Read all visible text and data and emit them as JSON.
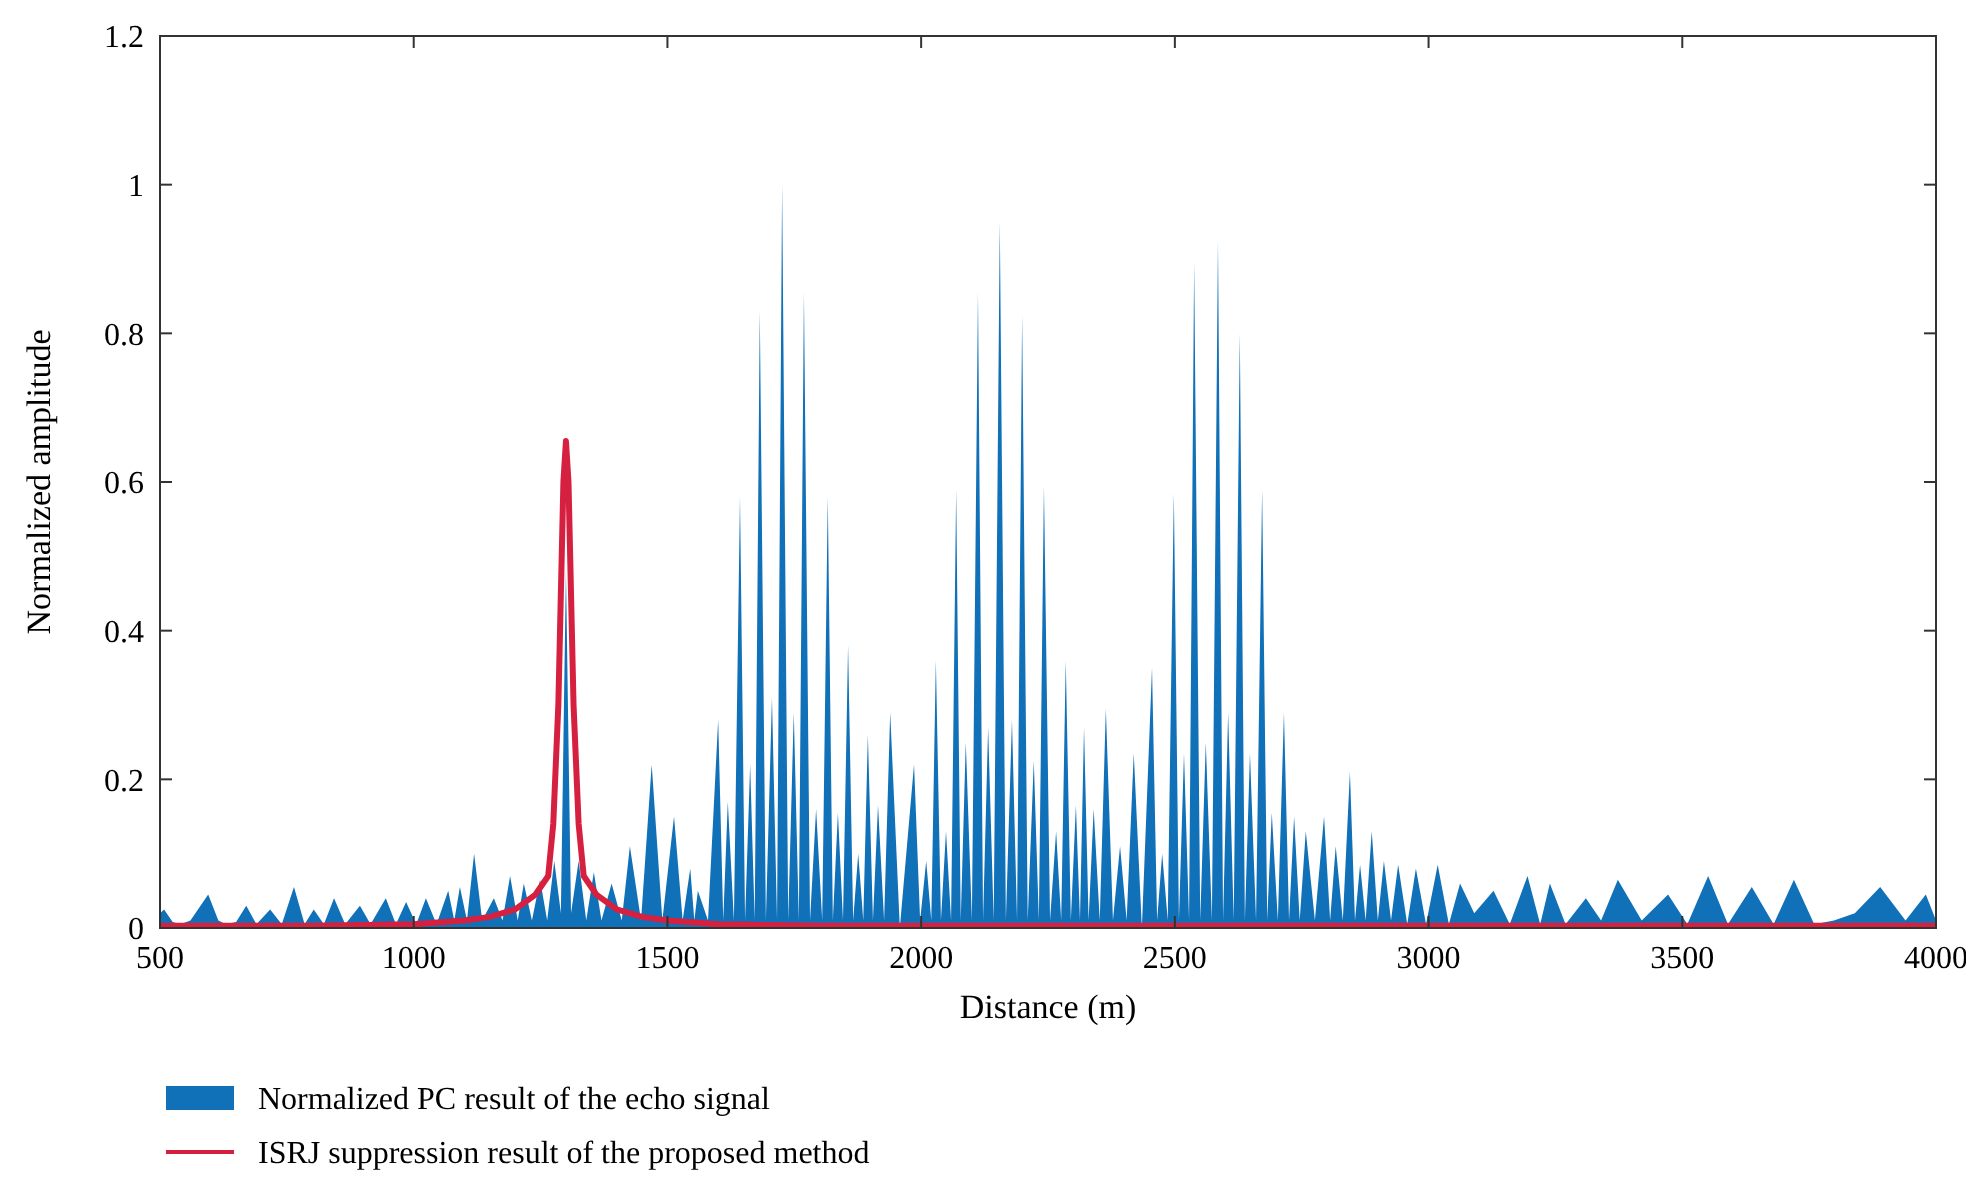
{
  "chart_data": {
    "type": "area",
    "xlabel": "Distance (m)",
    "ylabel": "Normalized amplitude",
    "xlim": [
      500,
      4000
    ],
    "ylim": [
      0,
      1.2
    ],
    "xticks": [
      500,
      1000,
      1500,
      2000,
      2500,
      3000,
      3500,
      4000
    ],
    "yticks": [
      0,
      0.2,
      0.4,
      0.6,
      0.8,
      1,
      1.2
    ],
    "grid": false,
    "legend": "bottom",
    "series": [
      {
        "name": "Normalized PC result of the echo signal",
        "color": "#1070b8",
        "x": [
          500,
          508,
          525,
          540,
          560,
          595,
          615,
          630,
          650,
          670,
          690,
          717,
          740,
          764,
          785,
          803,
          823,
          843,
          865,
          894,
          915,
          945,
          965,
          985,
          1005,
          1024,
          1045,
          1068,
          1080,
          1091,
          1105,
          1119,
          1135,
          1158,
          1175,
          1190,
          1205,
          1217,
          1233,
          1249,
          1263,
          1277,
          1290,
          1300,
          1310,
          1325,
          1340,
          1355,
          1370,
          1390,
          1410,
          1426,
          1448,
          1469,
          1490,
          1513,
          1530,
          1545,
          1553,
          1560,
          1580,
          1600,
          1610,
          1619,
          1631,
          1643,
          1653,
          1663,
          1672,
          1682,
          1694,
          1706,
          1716,
          1726,
          1738,
          1749,
          1759,
          1769,
          1781,
          1793,
          1805,
          1816,
          1826,
          1836,
          1846,
          1856,
          1866,
          1876,
          1886,
          1895,
          1905,
          1915,
          1927,
          1939,
          1958,
          1986,
          1998,
          2010,
          2020,
          2029,
          2039,
          2049,
          2059,
          2069,
          2078,
          2088,
          2100,
          2112,
          2122,
          2132,
          2143,
          2155,
          2167,
          2179,
          2189,
          2199,
          2210,
          2222,
          2232,
          2242,
          2254,
          2266,
          2276,
          2285,
          2295,
          2305,
          2313,
          2321,
          2330,
          2340,
          2352,
          2364,
          2378,
          2392,
          2405,
          2419,
          2435,
          2455,
          2465,
          2475,
          2486,
          2498,
          2508,
          2518,
          2528,
          2538,
          2550,
          2561,
          2573,
          2585,
          2595,
          2605,
          2616,
          2628,
          2638,
          2648,
          2660,
          2672,
          2682,
          2691,
          2703,
          2715,
          2725,
          2735,
          2746,
          2758,
          2776,
          2794,
          2806,
          2817,
          2831,
          2845,
          2855,
          2865,
          2876,
          2888,
          2900,
          2912,
          2926,
          2940,
          2958,
          2975,
          2995,
          3018,
          3040,
          3062,
          3090,
          3128,
          3160,
          3195,
          3220,
          3239,
          3270,
          3310,
          3340,
          3373,
          3420,
          3472,
          3510,
          3551,
          3590,
          3637,
          3680,
          3720,
          3760,
          3799,
          3840,
          3890,
          3940,
          3980,
          4000
        ],
        "values": [
          0.02,
          0.025,
          0.008,
          0.005,
          0.01,
          0.045,
          0.01,
          0.005,
          0.008,
          0.03,
          0.005,
          0.025,
          0.005,
          0.055,
          0.005,
          0.025,
          0.005,
          0.04,
          0.005,
          0.03,
          0.005,
          0.04,
          0.005,
          0.035,
          0.005,
          0.04,
          0.005,
          0.05,
          0.01,
          0.055,
          0.01,
          0.1,
          0.01,
          0.04,
          0.01,
          0.07,
          0.01,
          0.06,
          0.01,
          0.065,
          0.01,
          0.09,
          0.02,
          0.48,
          0.02,
          0.09,
          0.01,
          0.075,
          0.01,
          0.06,
          0.01,
          0.11,
          0.01,
          0.22,
          0.01,
          0.15,
          0.01,
          0.08,
          0.01,
          0.05,
          0.01,
          0.28,
          0.01,
          0.17,
          0.01,
          0.58,
          0.01,
          0.22,
          0.01,
          0.83,
          0.01,
          0.31,
          0.01,
          1.0,
          0.01,
          0.29,
          0.01,
          0.855,
          0.01,
          0.16,
          0.01,
          0.58,
          0.01,
          0.155,
          0.01,
          0.38,
          0.01,
          0.1,
          0.01,
          0.26,
          0.01,
          0.165,
          0.01,
          0.29,
          0,
          0.22,
          0.01,
          0.09,
          0.01,
          0.36,
          0.01,
          0.13,
          0.01,
          0.59,
          0.01,
          0.25,
          0.01,
          0.855,
          0.01,
          0.27,
          0.01,
          0.95,
          0.01,
          0.28,
          0.01,
          0.825,
          0.01,
          0.225,
          0.01,
          0.595,
          0.01,
          0.13,
          0.01,
          0.36,
          0.01,
          0.165,
          0.01,
          0.27,
          0.01,
          0.16,
          0.01,
          0.295,
          0.01,
          0.11,
          0.01,
          0.235,
          0,
          0.35,
          0.01,
          0.1,
          0.01,
          0.585,
          0.01,
          0.235,
          0.01,
          0.895,
          0.01,
          0.25,
          0.01,
          0.925,
          0.01,
          0.29,
          0.01,
          0.8,
          0.01,
          0.235,
          0.01,
          0.59,
          0.01,
          0.155,
          0.01,
          0.29,
          0.01,
          0.15,
          0.01,
          0.13,
          0.01,
          0.15,
          0.01,
          0.11,
          0.01,
          0.21,
          0.01,
          0.085,
          0.01,
          0.13,
          0.01,
          0.09,
          0.01,
          0.085,
          0.005,
          0.08,
          0.005,
          0.085,
          0.005,
          0.06,
          0.02,
          0.05,
          0.005,
          0.07,
          0.005,
          0.06,
          0.005,
          0.04,
          0.01,
          0.065,
          0.01,
          0.045,
          0.005,
          0.07,
          0.005,
          0.055,
          0.005,
          0.065,
          0.005,
          0.01,
          0.02,
          0.055,
          0.01,
          0.045,
          0.01
        ]
      },
      {
        "name": "ISRJ suppression result of the proposed method",
        "type": "line",
        "color": "#d62040",
        "x": [
          500,
          800,
          1000,
          1100,
          1150,
          1200,
          1240,
          1265,
          1275,
          1285,
          1295,
          1300,
          1305,
          1315,
          1325,
          1335,
          1360,
          1400,
          1450,
          1500,
          1600,
          1800,
          4000
        ],
        "values": [
          0.003,
          0.003,
          0.005,
          0.01,
          0.015,
          0.025,
          0.045,
          0.07,
          0.14,
          0.3,
          0.6,
          0.655,
          0.6,
          0.3,
          0.14,
          0.07,
          0.045,
          0.025,
          0.015,
          0.01,
          0.005,
          0.003,
          0.003
        ]
      }
    ]
  }
}
